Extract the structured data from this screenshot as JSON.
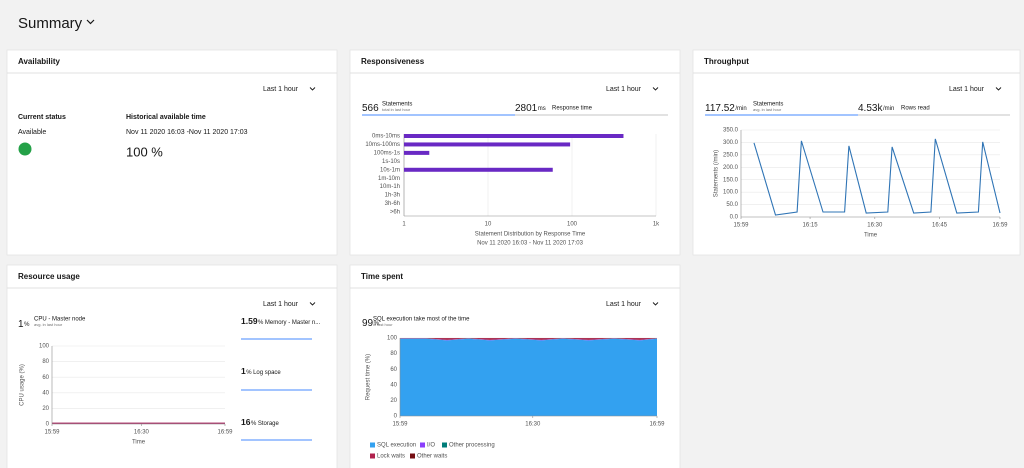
{
  "header": {
    "title": "Summary"
  },
  "availability": {
    "title": "Availability",
    "range": "Last 1 hour",
    "status_label": "Current status",
    "status": "Available",
    "history_label": "Historical available time",
    "history_period": "Nov 11 2020 16:03 -Nov 11 2020 17:03",
    "history_value": "100 %"
  },
  "responsiveness": {
    "title": "Responsiveness",
    "range": "Last 1 hour",
    "statements": "566",
    "statements_label": "Statements",
    "statements_note": "total in last hour",
    "response_time": "2801",
    "response_time_unit": "ms",
    "response_time_label": "Response time",
    "chart": {
      "type": "bar",
      "orientation": "horizontal",
      "categories": [
        "0ms-10ms",
        "10ms-100ms",
        "100ms-1s",
        "1s-10s",
        "10s-1m",
        "1m-10m",
        "10m-1h",
        "1h-3h",
        "3h-6h",
        ">6h"
      ],
      "values": [
        410,
        95,
        2,
        null,
        59,
        null,
        null,
        null,
        null,
        null
      ],
      "color": "#6929c4",
      "xscale": "log",
      "xlim": [
        1,
        1000
      ],
      "xticks": [
        1,
        10,
        100,
        {
          "value": 1000,
          "label": "1k"
        }
      ],
      "grid": true,
      "xlabel": "Statement Distribution by Response Time",
      "subtitle": "Nov 11 2020 16:03 - Nov 11 2020 17:03"
    }
  },
  "throughput": {
    "title": "Throughput",
    "range": "Last 1 hour",
    "statements": "117.52",
    "statements_unit": "/min",
    "statements_label": "Statements",
    "statements_note": "avg. in last hour",
    "rows": "4.53k",
    "rows_unit": "/min",
    "rows_label": "Rows read",
    "chart": {
      "type": "line",
      "x": [
        "16:02",
        "16:07",
        "16:12",
        "16:13",
        "16:18",
        "16:23",
        "16:24",
        "16:28",
        "16:33",
        "16:34",
        "16:39",
        "16:43",
        "16:44",
        "16:49",
        "16:54",
        "16:55",
        "16:59"
      ],
      "values": [
        298,
        8,
        20,
        306,
        20,
        20,
        286,
        16,
        20,
        282,
        16,
        20,
        314,
        16,
        20,
        302,
        16
      ],
      "color": "#2f74b5",
      "xlim": [
        "15:59",
        "16:59"
      ],
      "xticks": [
        "15:59",
        "16:15",
        "16:30",
        "16:45",
        "16:59"
      ],
      "ylim": [
        0,
        350
      ],
      "yticks": [
        {
          "value": 0,
          "label": "0.0"
        },
        {
          "value": 50,
          "label": "50.0"
        },
        {
          "value": 100,
          "label": "100.0"
        },
        {
          "value": 150,
          "label": "150.0"
        },
        {
          "value": 200,
          "label": "200.0"
        },
        {
          "value": 250,
          "label": "250.0"
        },
        {
          "value": 300,
          "label": "300.0"
        },
        {
          "value": 350,
          "label": "350.0"
        }
      ],
      "grid": true,
      "ylabel": "Statements (/min)",
      "xlabel": "Time"
    }
  },
  "resource_usage": {
    "title": "Resource usage",
    "range": "Last 1 hour",
    "cpu": "1",
    "cpu_unit": "%",
    "cpu_label": "CPU - Master node",
    "cpu_note": "avg. in last hour",
    "memory": "1.59",
    "memory_unit": "%",
    "memory_label": "Memory - Master n...",
    "log": "1",
    "log_unit": "%",
    "log_label": "Log space",
    "storage": "16",
    "storage_unit": "%",
    "storage_label": "Storage",
    "chart": {
      "type": "line",
      "x": [
        "15:59",
        "16:14",
        "16:29",
        "16:44",
        "16:59"
      ],
      "values": [
        1,
        1,
        1,
        1,
        1
      ],
      "color": "#9f1853",
      "xlim": [
        "15:59",
        "16:59"
      ],
      "xticks": [
        "15:59",
        "16:30",
        "16:59"
      ],
      "ylim": [
        0,
        100
      ],
      "yticks": [
        0,
        20,
        40,
        60,
        80,
        100
      ],
      "grid": true,
      "ylabel": "CPU usage (%)",
      "xlabel": "Time"
    }
  },
  "time_spent": {
    "title": "Time spent",
    "range": "Last 1 hour",
    "share": "99",
    "share_unit": "%",
    "share_label": "SQL execution take most of the time",
    "share_note": "in last hour",
    "chart": {
      "type": "area",
      "stacked": true,
      "x": [
        "15:59",
        "16:05",
        "16:10",
        "16:15",
        "16:20",
        "16:26",
        "16:32",
        "16:37",
        "16:43",
        "16:49",
        "16:55",
        "16:59"
      ],
      "series": [
        {
          "name": "SQL execution",
          "color": "#33a1f0",
          "values": [
            99,
            99,
            97,
            99,
            97,
            99,
            97,
            99,
            97,
            99,
            97,
            99
          ]
        },
        {
          "name": "I/O",
          "color": "#8a3ffc",
          "values": [
            0.4,
            0.4,
            0.4,
            0.4,
            0.4,
            0.4,
            0.4,
            0.4,
            0.4,
            0.4,
            0.4,
            0.4
          ]
        },
        {
          "name": "Other processing",
          "color": "#007d79",
          "values": [
            0.2,
            0.2,
            0.2,
            0.2,
            0.2,
            0.2,
            0.2,
            0.2,
            0.2,
            0.2,
            0.2,
            0.2
          ]
        },
        {
          "name": "Lock waits",
          "color": "#b0214d",
          "values": [
            0.3,
            0.3,
            2.3,
            0.3,
            2.3,
            0.3,
            2.3,
            0.3,
            2.3,
            0.3,
            2.3,
            0.3
          ]
        },
        {
          "name": "Other waits",
          "color": "#750e13",
          "values": [
            0.1,
            0.1,
            0.1,
            0.1,
            0.1,
            0.1,
            0.1,
            0.1,
            0.1,
            0.1,
            0.1,
            0.1
          ]
        }
      ],
      "xlim": [
        "15:59",
        "16:59"
      ],
      "xticks": [
        "15:59",
        "16:30",
        "16:59"
      ],
      "ylim": [
        0,
        100
      ],
      "yticks": [
        0,
        20,
        40,
        60,
        80,
        100
      ],
      "grid": true,
      "ylabel": "Request time (%)",
      "legend": "bottom"
    }
  }
}
